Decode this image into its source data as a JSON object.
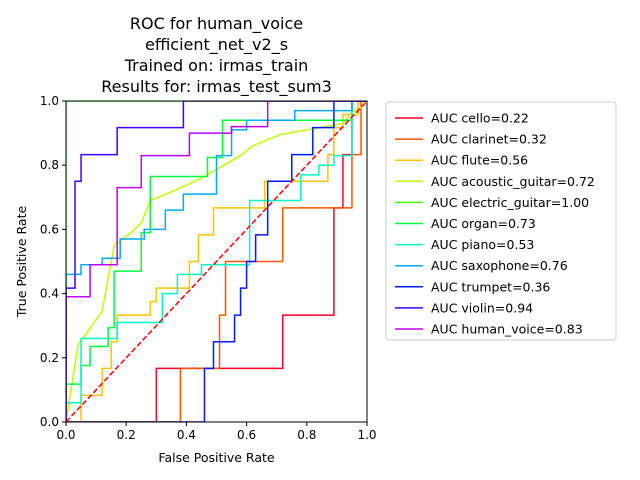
{
  "chart_data": {
    "type": "line",
    "title_lines": [
      "ROC for human_voice",
      "efficient_net_v2_s",
      "Trained on: irmas_train",
      "Results for: irmas_test_sum3"
    ],
    "xlabel": "False Positive Rate",
    "ylabel": "True Positive Rate",
    "xlim": [
      0,
      1
    ],
    "ylim": [
      0,
      1
    ],
    "xticks": [
      "0.0",
      "0.2",
      "0.4",
      "0.6",
      "0.8",
      "1.0"
    ],
    "yticks": [
      "0.0",
      "0.2",
      "0.4",
      "0.6",
      "0.8",
      "1.0"
    ],
    "grid": false,
    "legend_position": "right-outside",
    "diagonal": {
      "color": "#ff0000",
      "style": "dashed"
    },
    "series": [
      {
        "name": "AUC cello=0.22",
        "color": "#ff0029",
        "x": [
          0,
          0.3,
          0.3,
          0.72,
          0.72,
          0.89,
          0.89,
          0.92,
          0.92,
          0.95,
          0.95,
          1.0
        ],
        "y": [
          0,
          0,
          0.167,
          0.167,
          0.333,
          0.333,
          0.667,
          0.667,
          0.833,
          0.833,
          1.0,
          1.0
        ]
      },
      {
        "name": "AUC clarinet=0.32",
        "color": "#ff5500",
        "x": [
          0,
          0.38,
          0.38,
          0.51,
          0.51,
          0.53,
          0.53,
          0.72,
          0.72,
          0.95,
          0.95,
          0.98,
          0.98,
          1.0
        ],
        "y": [
          0,
          0,
          0.167,
          0.167,
          0.333,
          0.333,
          0.5,
          0.5,
          0.667,
          0.667,
          0.833,
          0.833,
          1.0,
          1.0
        ]
      },
      {
        "name": "AUC flute=0.56",
        "color": "#ffc400",
        "x": [
          0,
          0.05,
          0.05,
          0.12,
          0.12,
          0.15,
          0.15,
          0.17,
          0.17,
          0.28,
          0.28,
          0.3,
          0.3,
          0.41,
          0.41,
          0.44,
          0.44,
          0.49,
          0.49,
          0.66,
          0.66,
          0.87,
          0.87,
          0.89,
          0.89,
          0.92,
          0.92,
          0.97,
          0.97,
          1.0
        ],
        "y": [
          0,
          0,
          0.083,
          0.083,
          0.167,
          0.167,
          0.25,
          0.25,
          0.333,
          0.333,
          0.375,
          0.375,
          0.417,
          0.417,
          0.5,
          0.5,
          0.583,
          0.583,
          0.667,
          0.667,
          0.75,
          0.75,
          0.833,
          0.833,
          0.917,
          0.917,
          0.958,
          0.958,
          1.0,
          1.0
        ]
      },
      {
        "name": "AUC acoustic_guitar=0.72",
        "color": "#bfff00",
        "x": [
          0,
          0.04,
          0.04,
          0.12,
          0.12,
          0.16,
          0.16,
          0.21,
          0.21,
          0.25,
          0.25,
          0.28,
          0.28,
          0.37,
          0.37,
          0.45,
          0.45,
          0.58,
          0.58,
          0.62,
          0.62,
          0.71,
          0.71,
          0.92,
          0.92,
          0.95,
          0.95,
          0.98,
          0.98,
          1.0
        ],
        "y": [
          0,
          0.24,
          0.24,
          0.345,
          0.345,
          0.55,
          0.55,
          0.585,
          0.585,
          0.62,
          0.62,
          0.69,
          0.69,
          0.725,
          0.725,
          0.76,
          0.76,
          0.83,
          0.83,
          0.86,
          0.86,
          0.895,
          0.895,
          0.93,
          0.93,
          0.965,
          0.965,
          0.98,
          0.98,
          1.0
        ]
      },
      {
        "name": "AUC electric_guitar=1.00",
        "color": "#40ff00",
        "x": [
          0,
          0.0,
          1.0
        ],
        "y": [
          0,
          1.0,
          1.0
        ]
      },
      {
        "name": "AUC organ=0.73",
        "color": "#00ff40",
        "x": [
          0,
          0.0,
          0.05,
          0.05,
          0.08,
          0.08,
          0.14,
          0.14,
          0.16,
          0.16,
          0.25,
          0.25,
          0.28,
          0.28,
          0.47,
          0.47,
          0.52,
          0.52,
          0.95,
          0.95,
          1.0
        ],
        "y": [
          0,
          0.118,
          0.118,
          0.176,
          0.176,
          0.235,
          0.235,
          0.294,
          0.294,
          0.47,
          0.47,
          0.59,
          0.59,
          0.765,
          0.765,
          0.824,
          0.824,
          0.94,
          0.94,
          1.0,
          1.0
        ]
      },
      {
        "name": "AUC piano=0.53",
        "color": "#00ffc0",
        "x": [
          0,
          0.0,
          0.05,
          0.05,
          0.17,
          0.17,
          0.32,
          0.32,
          0.37,
          0.37,
          0.45,
          0.45,
          0.61,
          0.61,
          0.78,
          0.78,
          0.84,
          0.84,
          0.89,
          0.89,
          0.95,
          0.95,
          1.0
        ],
        "y": [
          0,
          0.06,
          0.06,
          0.26,
          0.26,
          0.31,
          0.31,
          0.4,
          0.4,
          0.46,
          0.46,
          0.49,
          0.49,
          0.69,
          0.69,
          0.77,
          0.77,
          0.8,
          0.8,
          0.83,
          0.83,
          1.0,
          1.0
        ]
      },
      {
        "name": "AUC saxophone=0.76",
        "color": "#00aaff",
        "x": [
          0,
          0.0,
          0.05,
          0.05,
          0.12,
          0.12,
          0.18,
          0.18,
          0.26,
          0.26,
          0.33,
          0.33,
          0.39,
          0.39,
          0.5,
          0.5,
          0.55,
          0.55,
          0.6,
          0.6,
          0.76,
          0.76,
          0.95,
          0.95,
          1.0
        ],
        "y": [
          0,
          0.46,
          0.46,
          0.49,
          0.49,
          0.51,
          0.51,
          0.57,
          0.57,
          0.6,
          0.6,
          0.66,
          0.66,
          0.71,
          0.71,
          0.83,
          0.83,
          0.91,
          0.91,
          0.94,
          0.94,
          0.97,
          0.97,
          1.0,
          1.0
        ]
      },
      {
        "name": "AUC trumpet=0.36",
        "color": "#0019ff",
        "x": [
          0,
          0.46,
          0.46,
          0.49,
          0.49,
          0.56,
          0.56,
          0.58,
          0.58,
          0.6,
          0.6,
          0.63,
          0.63,
          0.67,
          0.67,
          0.75,
          0.75,
          0.82,
          0.82,
          0.89,
          0.89,
          0.97,
          0.97,
          1.0
        ],
        "y": [
          0,
          0,
          0.167,
          0.167,
          0.25,
          0.25,
          0.333,
          0.333,
          0.417,
          0.417,
          0.5,
          0.5,
          0.583,
          0.583,
          0.75,
          0.75,
          0.833,
          0.833,
          0.917,
          0.917,
          1.0,
          1.0,
          1.0,
          1.0
        ]
      },
      {
        "name": "AUC violin=0.94",
        "color": "#4000ff",
        "x": [
          0,
          0.0,
          0.03,
          0.03,
          0.05,
          0.05,
          0.17,
          0.17,
          0.39,
          0.39,
          1.0
        ],
        "y": [
          0,
          0.417,
          0.417,
          0.75,
          0.75,
          0.833,
          0.833,
          0.917,
          0.917,
          1.0,
          1.0
        ]
      },
      {
        "name": "AUC human_voice=0.83",
        "color": "#bf00ff",
        "x": [
          0,
          0.0,
          0.08,
          0.08,
          0.17,
          0.17,
          0.25,
          0.25,
          0.41,
          0.41,
          0.55,
          0.55,
          0.67,
          0.67,
          1.0
        ],
        "y": [
          0,
          0.39,
          0.39,
          0.49,
          0.49,
          0.73,
          0.73,
          0.83,
          0.83,
          0.9,
          0.9,
          0.92,
          0.92,
          1.0,
          1.0
        ]
      }
    ]
  }
}
